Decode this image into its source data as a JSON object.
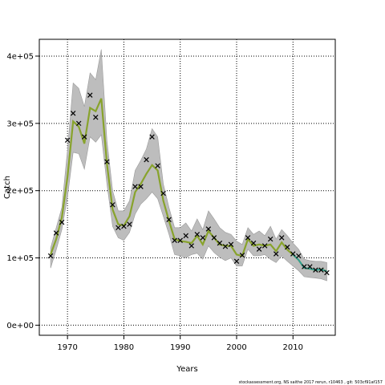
{
  "chart_data": {
    "type": "line",
    "xlabel": "Years",
    "ylabel": "Catch",
    "xlim": [
      1965,
      2017.5
    ],
    "ylim": [
      -15000,
      425000
    ],
    "x_ticks": [
      1970,
      1980,
      1990,
      2000,
      2010
    ],
    "x_tick_labels": [
      "1970",
      "1980",
      "1990",
      "2000",
      "2010"
    ],
    "y_ticks": [
      0,
      100000,
      200000,
      300000,
      400000
    ],
    "y_tick_labels": [
      "0e+00",
      "1e+05",
      "2e+05",
      "3e+05",
      "4e+05"
    ],
    "grid": true,
    "series": [
      {
        "kind": "observed_points",
        "marker": "x",
        "x": [
          1967,
          1968,
          1969,
          1970,
          1971,
          1972,
          1973,
          1974,
          1975,
          1976,
          1977,
          1978,
          1979,
          1980,
          1981,
          1982,
          1983,
          1984,
          1985,
          1986,
          1987,
          1988,
          1989,
          1990,
          1991,
          1992,
          1993,
          1994,
          1995,
          1996,
          1997,
          1998,
          1999,
          2000,
          2001,
          2002,
          2003,
          2004,
          2005,
          2006,
          2007,
          2008,
          2009,
          2010,
          2011,
          2012,
          2013,
          2014,
          2015,
          2016
        ],
        "values": [
          103000,
          137000,
          153000,
          275000,
          315000,
          300000,
          280000,
          342000,
          309000,
          null,
          243000,
          179000,
          145000,
          147000,
          150000,
          206000,
          206000,
          246000,
          280000,
          237000,
          196000,
          157000,
          126000,
          126000,
          133000,
          118000,
          135000,
          130000,
          143000,
          130000,
          122000,
          117000,
          120000,
          95000,
          104000,
          130000,
          122000,
          113000,
          118000,
          128000,
          106000,
          130000,
          116000,
          106000,
          103000,
          87000,
          87000,
          82000,
          82000,
          78000
        ]
      },
      {
        "kind": "estimate_line",
        "x": [
          1967,
          1968,
          1969,
          1970,
          1971,
          1972,
          1973,
          1974,
          1975,
          1976,
          1977,
          1978,
          1979,
          1980,
          1981,
          1982,
          1983,
          1984,
          1985,
          1986,
          1987,
          1988,
          1989,
          1990,
          1991,
          1992,
          1993,
          1994,
          1995,
          1996,
          1997,
          1998,
          1999,
          2000,
          2001,
          2002,
          2003,
          2004,
          2005,
          2006,
          2007,
          2008,
          2009,
          2010,
          2011,
          2012,
          2013,
          2014,
          2015,
          2016
        ],
        "values": [
          105000,
          128000,
          160000,
          220000,
          303000,
          295000,
          270000,
          323000,
          318000,
          337000,
          240000,
          172000,
          150000,
          148000,
          162000,
          198000,
          210000,
          225000,
          238000,
          230000,
          185000,
          155000,
          128000,
          125000,
          124000,
          122000,
          133000,
          120000,
          140000,
          130000,
          120000,
          118000,
          118000,
          105000,
          103000,
          128000,
          118000,
          120000,
          118000,
          120000,
          110000,
          123000,
          112000,
          105000,
          97000,
          85000,
          84000,
          82000,
          83000,
          80000
        ]
      },
      {
        "kind": "confidence_band",
        "x": [
          1967,
          1968,
          1969,
          1970,
          1971,
          1972,
          1973,
          1974,
          1975,
          1976,
          1977,
          1978,
          1979,
          1980,
          1981,
          1982,
          1983,
          1984,
          1985,
          1986,
          1987,
          1988,
          1989,
          1990,
          1991,
          1992,
          1993,
          1994,
          1995,
          1996,
          1997,
          1998,
          1999,
          2000,
          2001,
          2002,
          2003,
          2004,
          2005,
          2006,
          2007,
          2008,
          2009,
          2010,
          2011,
          2012,
          2013,
          2014,
          2015,
          2016
        ],
        "upper": [
          115000,
          145000,
          175000,
          260000,
          360000,
          352000,
          325000,
          375000,
          365000,
          410000,
          275000,
          200000,
          170000,
          170000,
          185000,
          230000,
          245000,
          262000,
          292000,
          280000,
          210000,
          175000,
          145000,
          145000,
          152000,
          140000,
          158000,
          142000,
          170000,
          158000,
          145000,
          138000,
          135000,
          125000,
          120000,
          145000,
          135000,
          140000,
          133000,
          147000,
          128000,
          142000,
          133000,
          122000,
          113000,
          98000,
          96000,
          95000,
          95000,
          93000
        ],
        "lower": [
          85000,
          112000,
          142000,
          190000,
          257000,
          255000,
          232000,
          280000,
          272000,
          283000,
          210000,
          147000,
          130000,
          126000,
          138000,
          165000,
          180000,
          188000,
          198000,
          188000,
          162000,
          135000,
          105000,
          103000,
          100000,
          105000,
          107000,
          98000,
          118000,
          108000,
          101000,
          96000,
          100000,
          88000,
          88000,
          113000,
          103000,
          103000,
          105000,
          98000,
          93000,
          103000,
          95000,
          88000,
          81000,
          72000,
          71000,
          70000,
          69000,
          66000
        ]
      }
    ],
    "colors": {
      "estimate_line": "#88a32c",
      "band": "#bdbdbd",
      "band_edge": "#9a9a9a",
      "marker": "#000000",
      "recent_line": "#2b9e9b"
    }
  },
  "footer_text": "stockassessment.org, NS saithe 2017 rerun, r10463 , git: 503cf91af157"
}
